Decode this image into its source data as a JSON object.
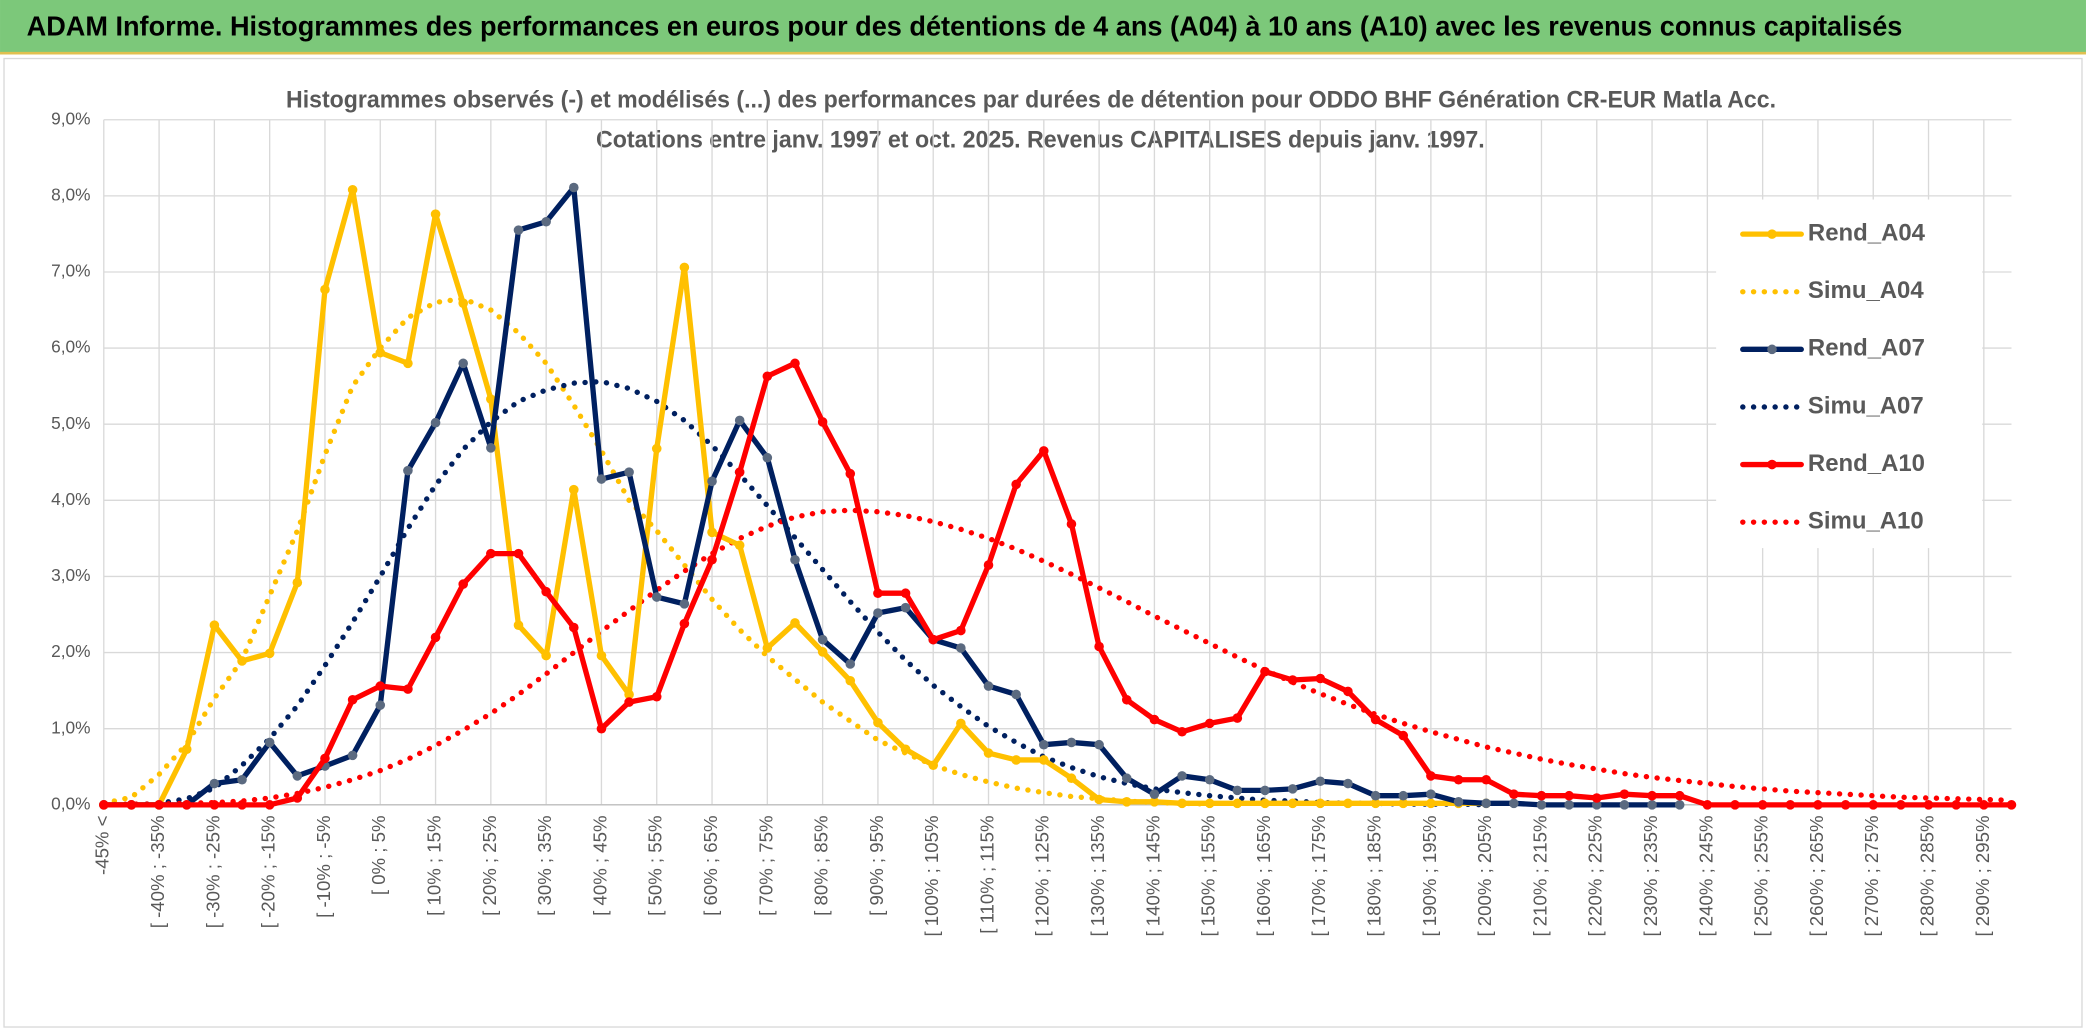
{
  "header": {
    "title": "ADAM Informe. Histogrammes des performances en euros pour des détentions de 4 ans (A04) à 10 ans (A10) avec les revenus connus capitalisés"
  },
  "chart_data": {
    "type": "line",
    "title": "Histogrammes observés (-) et modélisés (...) des performances par durées de détention pour ODDO BHF Génération CR-EUR Matla Acc.",
    "subtitle": "Cotations entre janv. 1997 et oct. 2025. Revenus CAPITALISES depuis janv. 1997.",
    "categories": [
      "-45% <",
      null,
      "[ -40% ; -35%",
      null,
      "[ -30% ; -25%",
      null,
      "[ -20% ; -15%",
      null,
      "[ -10% ; -5%",
      null,
      "[ 0% ; 5%",
      null,
      "[ 10% ; 15%",
      null,
      "[ 20% ; 25%",
      null,
      "[ 30% ; 35%",
      null,
      "[ 40% ; 45%",
      null,
      "[ 50% ; 55%",
      null,
      "[ 60% ; 65%",
      null,
      "[ 70% ; 75%",
      null,
      "[ 80% ; 85%",
      null,
      "[ 90% ; 95%",
      null,
      "[ 100% ; 105%",
      null,
      "[ 110% ; 115%",
      null,
      "[ 120% ; 125%",
      null,
      "[ 130% ; 135%",
      null,
      "[ 140% ; 145%",
      null,
      "[ 150% ; 155%",
      null,
      "[ 160% ; 165%",
      null,
      "[ 170% ; 175%",
      null,
      "[ 180% ; 185%",
      null,
      "[ 190% ; 195%",
      null,
      "[ 200% ; 205%",
      null,
      "[ 210% ; 215%",
      null,
      "[ 220% ; 225%",
      null,
      "[ 230% ; 235%",
      null,
      "[ 240% ; 245%",
      null,
      "[ 250% ; 255%",
      null,
      "[ 260% ; 265%",
      null,
      "[ 270% ; 275%",
      null,
      "[ 280% ; 285%",
      null,
      "[ 290% ; 295%",
      null
    ],
    "series": [
      {
        "name": "Rend_A04",
        "color": "#ffc000",
        "line_style": "solid",
        "marker_color": "#ffc000",
        "values": [
          0,
          0,
          0,
          0.73,
          2.36,
          1.89,
          1.99,
          2.92,
          6.77,
          8.08,
          5.94,
          5.8,
          7.76,
          6.59,
          5.33,
          2.36,
          1.96,
          4.14,
          1.96,
          1.45,
          4.68,
          7.06,
          3.58,
          3.41,
          2.06,
          2.39,
          2.01,
          1.63,
          1.08,
          0.73,
          0.52,
          1.07,
          0.68,
          0.59,
          0.59,
          0.35,
          0.07,
          0.04,
          0.04,
          0.02,
          0.02,
          0.02,
          0.02,
          0.02,
          0.02,
          0.02,
          0.02,
          0.02,
          0.02,
          0.02,
          0.02,
          null,
          null,
          null,
          null,
          null,
          null,
          null,
          null,
          null,
          null,
          null,
          null,
          null,
          null,
          null,
          null,
          null,
          null,
          null
        ]
      },
      {
        "name": "Simu_A04",
        "color": "#ffc000",
        "line_style": "dotted",
        "values": [
          0.02,
          0.1,
          0.4,
          0.8,
          1.4,
          1.9,
          2.75,
          3.6,
          4.6,
          5.5,
          6,
          6.4,
          6.6,
          6.65,
          6.5,
          6.2,
          5.8,
          5.25,
          4.65,
          4,
          3.6,
          3.15,
          2.7,
          2.3,
          1.95,
          1.65,
          1.35,
          1.1,
          0.85,
          0.68,
          0.52,
          0.4,
          0.3,
          0.22,
          0.16,
          0.11,
          0.08,
          0.05,
          0.03,
          0.02,
          0.01,
          null,
          null,
          null,
          null,
          null,
          null,
          null,
          null,
          null,
          null,
          null,
          null,
          null,
          null,
          null,
          null,
          null,
          null,
          null,
          null,
          null,
          null,
          null,
          null,
          null,
          null,
          null,
          null,
          null
        ]
      },
      {
        "name": "Rend_A07",
        "color": "#002060",
        "line_style": "solid",
        "marker_color": "#5b6a80",
        "values": [
          0,
          0,
          0,
          0,
          0.28,
          0.33,
          0.82,
          0.38,
          0.51,
          0.65,
          1.31,
          4.39,
          5.02,
          5.8,
          4.69,
          7.55,
          7.66,
          8.11,
          4.28,
          4.37,
          2.73,
          2.64,
          4.25,
          5.05,
          4.56,
          3.22,
          2.17,
          1.85,
          2.52,
          2.59,
          2.17,
          2.06,
          1.56,
          1.45,
          0.79,
          0.82,
          0.79,
          0.35,
          0.14,
          0.38,
          0.33,
          0.19,
          0.19,
          0.21,
          0.31,
          0.28,
          0.12,
          0.12,
          0.14,
          0.04,
          0.02,
          0.02,
          0,
          0,
          0,
          0,
          0,
          0,
          null,
          null,
          null,
          null,
          null,
          null,
          null,
          null,
          null,
          null,
          null,
          null
        ]
      },
      {
        "name": "Simu_A07",
        "color": "#002060",
        "line_style": "dotted",
        "values": [
          0,
          0,
          0.02,
          0.08,
          0.22,
          0.52,
          0.87,
          1.3,
          1.83,
          2.4,
          3,
          3.63,
          4.2,
          4.67,
          5.03,
          5.3,
          5.45,
          5.54,
          5.56,
          5.47,
          5.3,
          5.05,
          4.72,
          4.34,
          3.93,
          3.51,
          3.09,
          2.67,
          2.27,
          1.9,
          1.57,
          1.29,
          1.03,
          0.82,
          0.63,
          0.49,
          0.37,
          0.28,
          0.21,
          0.16,
          0.12,
          0.09,
          0.06,
          0.05,
          0.03,
          0.02,
          0.02,
          0.01,
          0.01,
          0.01,
          0,
          null,
          null,
          null,
          null,
          null,
          null,
          null,
          null,
          null,
          null,
          null,
          null,
          null,
          null,
          null,
          null,
          null,
          null,
          null
        ]
      },
      {
        "name": "Rend_A10",
        "color": "#ff0000",
        "line_style": "solid",
        "marker_color": "#ff0000",
        "values": [
          0,
          0,
          0,
          0,
          0,
          0,
          0,
          0.09,
          0.61,
          1.38,
          1.56,
          1.52,
          2.2,
          2.9,
          3.3,
          3.3,
          2.8,
          2.33,
          1,
          1.35,
          1.42,
          2.38,
          3.22,
          4.37,
          5.63,
          5.8,
          5.03,
          4.35,
          2.78,
          2.78,
          2.17,
          2.29,
          3.15,
          4.21,
          4.65,
          3.69,
          2.08,
          1.38,
          1.12,
          0.96,
          1.07,
          1.14,
          1.75,
          1.64,
          1.66,
          1.49,
          1.12,
          0.91,
          0.38,
          0.33,
          0.33,
          0.14,
          0.12,
          0.12,
          0.09,
          0.14,
          0.12,
          0.12,
          0,
          0,
          0,
          0,
          0,
          0,
          0,
          0,
          0,
          0,
          0,
          0
        ]
      },
      {
        "name": "Simu_A10",
        "color": "#ff0000",
        "line_style": "dotted",
        "values": [
          0,
          0.01,
          0.01,
          0.02,
          0.03,
          0.05,
          0.09,
          0.15,
          0.23,
          0.33,
          0.45,
          0.6,
          0.78,
          0.98,
          1.2,
          1.45,
          1.72,
          2,
          2.28,
          2.55,
          2.82,
          3.07,
          3.3,
          3.5,
          3.66,
          3.78,
          3.85,
          3.87,
          3.85,
          3.8,
          3.72,
          3.62,
          3.5,
          3.36,
          3.2,
          3.03,
          2.85,
          2.67,
          2.48,
          2.3,
          2.12,
          1.94,
          1.77,
          1.61,
          1.46,
          1.32,
          1.19,
          1.07,
          0.96,
          0.86,
          0.76,
          0.68,
          0.6,
          0.53,
          0.47,
          0.41,
          0.36,
          0.32,
          0.28,
          0.24,
          0.21,
          0.18,
          0.16,
          0.14,
          0.12,
          0.1,
          0.09,
          0.08,
          0.07,
          0.06
        ]
      }
    ],
    "ylim": [
      0,
      9
    ],
    "yticks": [
      {
        "value": 0,
        "label": "0,0%"
      },
      {
        "value": 1,
        "label": "1,0%"
      },
      {
        "value": 2,
        "label": "2,0%"
      },
      {
        "value": 3,
        "label": "3,0%"
      },
      {
        "value": 4,
        "label": "4,0%"
      },
      {
        "value": 5,
        "label": "5,0%"
      },
      {
        "value": 6,
        "label": "6,0%"
      },
      {
        "value": 7,
        "label": "7,0%"
      },
      {
        "value": 8,
        "label": "8,0%"
      },
      {
        "value": 9,
        "label": "9,0%"
      }
    ],
    "grid": true,
    "legend": "right"
  }
}
